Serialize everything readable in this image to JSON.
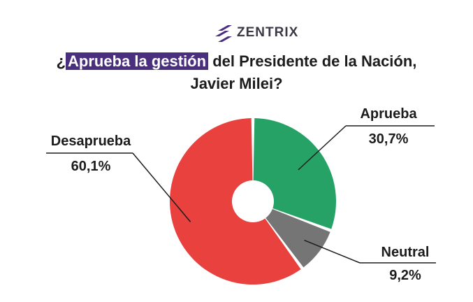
{
  "brand": {
    "name": "ZENTRIX",
    "logo_color": "#4b2f7f"
  },
  "title": {
    "prefix": "¿",
    "highlight": "Aprueba la gestión",
    "rest": " del Presidente de la Nación, Javier Milei?",
    "highlight_color": "#4b2f7f"
  },
  "chart_data": {
    "type": "pie",
    "variant": "donut",
    "title": "¿Aprueba la gestión del Presidente de la Nación, Javier Milei?",
    "slices": [
      {
        "name": "Aprueba",
        "value": 30.7,
        "label": "30,7%",
        "color": "#27a266"
      },
      {
        "name": "Neutral",
        "value": 9.2,
        "label": "9,2%",
        "color": "#757575"
      },
      {
        "name": "Desaprueba",
        "value": 60.1,
        "label": "60,1%",
        "color": "#e8413e"
      }
    ],
    "start": "top",
    "direction": "clockwise"
  }
}
